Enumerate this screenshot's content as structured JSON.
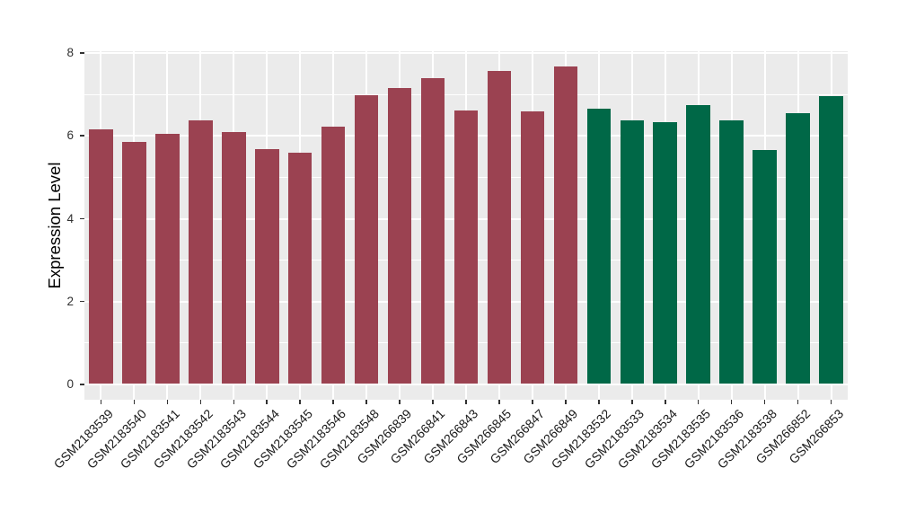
{
  "chart_data": {
    "type": "bar",
    "title": "",
    "xlabel": "",
    "ylabel": "Expression Level",
    "ylim": [
      0,
      8
    ],
    "yticks": [
      0,
      2,
      4,
      6,
      8
    ],
    "minor_yticks": [
      1,
      3,
      5,
      7
    ],
    "grid": true,
    "legend_position": "none",
    "categories": [
      "GSM2183539",
      "GSM2183540",
      "GSM2183541",
      "GSM2183542",
      "GSM2183543",
      "GSM2183544",
      "GSM2183545",
      "GSM2183546",
      "GSM2183548",
      "GSM266839",
      "GSM266841",
      "GSM266843",
      "GSM266845",
      "GSM266847",
      "GSM266849",
      "GSM2183532",
      "GSM2183533",
      "GSM2183534",
      "GSM2183535",
      "GSM2183536",
      "GSM2183538",
      "GSM266852",
      "GSM266853"
    ],
    "values": [
      6.16,
      5.86,
      6.04,
      6.37,
      6.1,
      5.67,
      5.59,
      6.23,
      6.98,
      7.16,
      7.39,
      6.62,
      7.56,
      6.59,
      7.67,
      6.65,
      6.38,
      6.33,
      6.74,
      6.38,
      5.65,
      6.55,
      6.96
    ],
    "bar_colors": [
      "#9B4251",
      "#9B4251",
      "#9B4251",
      "#9B4251",
      "#9B4251",
      "#9B4251",
      "#9B4251",
      "#9B4251",
      "#9B4251",
      "#9B4251",
      "#9B4251",
      "#9B4251",
      "#9B4251",
      "#9B4251",
      "#9B4251",
      "#006847",
      "#006847",
      "#006847",
      "#006847",
      "#006847",
      "#006847",
      "#006847",
      "#006847"
    ],
    "colors": {
      "group_left": "#9B4251",
      "group_right": "#006847",
      "panel_background": "#EBEBEB",
      "gridline": "#FFFFFF",
      "axis_tick": "#333333",
      "axis_text": "#1a1a1a",
      "page_background": "#FFFFFF"
    }
  }
}
